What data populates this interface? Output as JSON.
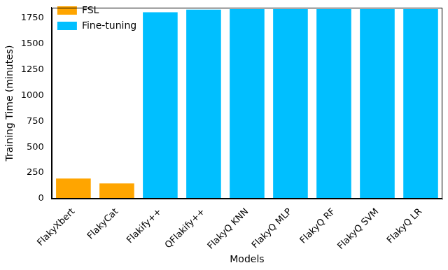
{
  "chart_data": {
    "type": "bar",
    "x_label": "Models",
    "y_label": "Training Time (minutes)",
    "categories": [
      "FlakyXbert",
      "FlakyCat",
      "Flakify++",
      "QFlakify++",
      "FlakyQ KNN",
      "FlakyQ MLP",
      "FlakyQ RF",
      "FlakyQ SVM",
      "FlakyQ LR"
    ],
    "series": [
      {
        "name": "FSL",
        "color": "#ffa500",
        "values": [
          195,
          148,
          null,
          null,
          null,
          null,
          null,
          null,
          null
        ]
      },
      {
        "name": "Fine-tuning",
        "color": "#00bfff",
        "values": [
          null,
          null,
          1805,
          1830,
          1835,
          1835,
          1835,
          1835,
          1835
        ]
      }
    ],
    "ylim": [
      0,
      1850
    ],
    "yticks": [
      0,
      250,
      500,
      750,
      1000,
      1250,
      1500,
      1750
    ],
    "grid": false,
    "legend": "upper left"
  }
}
